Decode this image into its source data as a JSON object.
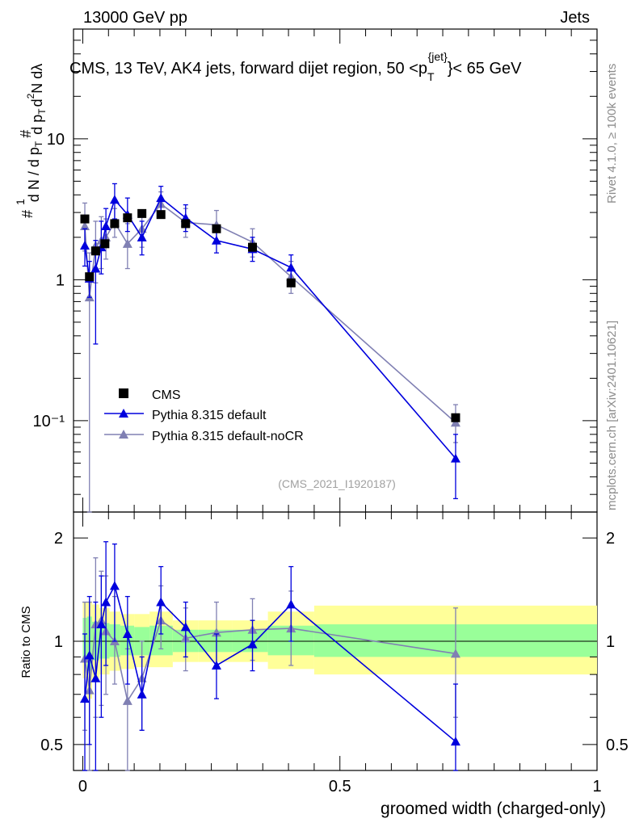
{
  "header": {
    "left": "13000 GeV pp",
    "right": "Jets"
  },
  "side_labels": {
    "rivet": "Rivet 4.1.0, ≥ 100k events",
    "mcplots": "mcplots.cern.ch [arXiv:2401.10621]"
  },
  "chart_data": [
    {
      "type": "scatter",
      "title": "CMS, 13 TeV, AK4 jets, forward dijet region, 50 <p",
      "title_sup": "{jet}",
      "title_sub": "T",
      "title_end": "}< 65 GeV",
      "ylabel": "1/N dN/dp_T d^2N/dp_T dλ",
      "yscale": "log",
      "ylim": [
        0.0225,
        60
      ],
      "xlim": [
        -0.018,
        1.0
      ],
      "watermark": "(CMS_2021_I1920187)",
      "y_tick_labels": [
        {
          "value": 10,
          "label": "10"
        },
        {
          "value": 1,
          "label": "1"
        },
        {
          "value": 0.1,
          "label": "10⁻¹"
        }
      ],
      "legend": [
        "CMS",
        "Pythia 8.315 default",
        "Pythia 8.315 default-noCR"
      ],
      "series": [
        {
          "name": "CMS",
          "marker": "square",
          "color": "#000000",
          "points": [
            {
              "x": 0.004,
              "y": 2.7
            },
            {
              "x": 0.013,
              "y": 1.05
            },
            {
              "x": 0.025,
              "y": 1.6
            },
            {
              "x": 0.043,
              "y": 1.8
            },
            {
              "x": 0.062,
              "y": 2.5
            },
            {
              "x": 0.087,
              "y": 2.75
            },
            {
              "x": 0.115,
              "y": 2.95
            },
            {
              "x": 0.152,
              "y": 2.9
            },
            {
              "x": 0.2,
              "y": 2.5
            },
            {
              "x": 0.26,
              "y": 2.3
            },
            {
              "x": 0.33,
              "y": 1.7
            },
            {
              "x": 0.405,
              "y": 0.95
            },
            {
              "x": 0.725,
              "y": 0.105
            }
          ]
        },
        {
          "name": "Pythia 8.315 default",
          "marker": "triangle",
          "color": "#0000dd",
          "points": [
            {
              "x": 0.004,
              "y": 1.75,
              "lo": 1.25,
              "hi": 2.3
            },
            {
              "x": 0.013,
              "y": 1.02,
              "lo": 0.75,
              "hi": 1.35
            },
            {
              "x": 0.025,
              "y": 1.2,
              "lo": 0.35,
              "hi": 1.9
            },
            {
              "x": 0.036,
              "y": 1.7,
              "lo": 1.1,
              "hi": 2.6
            },
            {
              "x": 0.045,
              "y": 2.4,
              "lo": 1.7,
              "hi": 3.2
            },
            {
              "x": 0.062,
              "y": 3.7,
              "lo": 2.7,
              "hi": 4.8
            },
            {
              "x": 0.087,
              "y": 2.9,
              "lo": 2.2,
              "hi": 3.8
            },
            {
              "x": 0.115,
              "y": 2.0,
              "lo": 1.5,
              "hi": 2.6
            },
            {
              "x": 0.152,
              "y": 3.8,
              "lo": 3.0,
              "hi": 4.6
            },
            {
              "x": 0.2,
              "y": 2.75,
              "lo": 2.2,
              "hi": 3.4
            },
            {
              "x": 0.26,
              "y": 1.9,
              "lo": 1.55,
              "hi": 2.3
            },
            {
              "x": 0.33,
              "y": 1.65,
              "lo": 1.35,
              "hi": 2.0
            },
            {
              "x": 0.405,
              "y": 1.22,
              "lo": 1.0,
              "hi": 1.5
            },
            {
              "x": 0.725,
              "y": 0.054,
              "lo": 0.028,
              "hi": 0.08
            }
          ]
        },
        {
          "name": "Pythia 8.315 default-noCR",
          "marker": "triangle",
          "color": "#8080b3",
          "points": [
            {
              "x": 0.004,
              "y": 2.4,
              "lo": 1.6,
              "hi": 3.5
            },
            {
              "x": 0.013,
              "y": 0.75,
              "lo": 0.0225,
              "hi": 1.55
            },
            {
              "x": 0.025,
              "y": 1.75,
              "lo": 0.95,
              "hi": 2.6
            },
            {
              "x": 0.036,
              "y": 1.9,
              "lo": 1.2,
              "hi": 2.8
            },
            {
              "x": 0.045,
              "y": 2.0,
              "lo": 1.4,
              "hi": 2.7
            },
            {
              "x": 0.062,
              "y": 2.55,
              "lo": 2.0,
              "hi": 3.2
            },
            {
              "x": 0.087,
              "y": 1.8,
              "lo": 1.2,
              "hi": 2.5
            },
            {
              "x": 0.115,
              "y": 2.3,
              "lo": 1.7,
              "hi": 3.0
            },
            {
              "x": 0.152,
              "y": 3.45,
              "lo": 2.8,
              "hi": 4.2
            },
            {
              "x": 0.2,
              "y": 2.55,
              "lo": 2.0,
              "hi": 3.2
            },
            {
              "x": 0.26,
              "y": 2.45,
              "lo": 1.9,
              "hi": 3.1
            },
            {
              "x": 0.33,
              "y": 1.85,
              "lo": 1.45,
              "hi": 2.3
            },
            {
              "x": 0.405,
              "y": 1.05,
              "lo": 0.8,
              "hi": 1.35
            },
            {
              "x": 0.725,
              "y": 0.097,
              "lo": 0.07,
              "hi": 0.13
            }
          ]
        }
      ]
    },
    {
      "type": "scatter",
      "ylabel": "Ratio to CMS",
      "xlabel": "groomed width (charged-only)",
      "xlim": [
        -0.018,
        1.0
      ],
      "ylim": [
        0.42,
        2.38
      ],
      "yscale": "log",
      "reference_line": 1,
      "y_tick_labels": [
        {
          "value": 2,
          "label": "2"
        },
        {
          "value": 1,
          "label": "1"
        },
        {
          "value": 0.5,
          "label": "0.5"
        }
      ],
      "x_tick_labels": [
        {
          "value": 0,
          "label": "0"
        },
        {
          "value": 0.5,
          "label": "0.5"
        },
        {
          "value": 1,
          "label": "1"
        }
      ],
      "uncertainty_bands": [
        {
          "x0": 0.0,
          "x1": 0.008,
          "y_lo": 0.78,
          "y_hi": 1.3,
          "g_lo": 0.88,
          "g_hi": 1.17
        },
        {
          "x0": 0.008,
          "x1": 0.018,
          "y_lo": 0.68,
          "y_hi": 1.3,
          "g_lo": 0.82,
          "g_hi": 1.18
        },
        {
          "x0": 0.018,
          "x1": 0.032,
          "y_lo": 0.78,
          "y_hi": 1.28,
          "g_lo": 0.88,
          "g_hi": 1.14
        },
        {
          "x0": 0.032,
          "x1": 0.052,
          "y_lo": 0.8,
          "y_hi": 1.25,
          "g_lo": 0.89,
          "g_hi": 1.13
        },
        {
          "x0": 0.052,
          "x1": 0.073,
          "y_lo": 0.82,
          "y_hi": 1.22,
          "g_lo": 0.9,
          "g_hi": 1.12
        },
        {
          "x0": 0.073,
          "x1": 0.1,
          "y_lo": 0.83,
          "y_hi": 1.2,
          "g_lo": 0.91,
          "g_hi": 1.11
        },
        {
          "x0": 0.1,
          "x1": 0.13,
          "y_lo": 0.84,
          "y_hi": 1.2,
          "g_lo": 0.91,
          "g_hi": 1.1
        },
        {
          "x0": 0.13,
          "x1": 0.175,
          "y_lo": 0.84,
          "y_hi": 1.22,
          "g_lo": 0.91,
          "g_hi": 1.11
        },
        {
          "x0": 0.175,
          "x1": 0.225,
          "y_lo": 0.87,
          "y_hi": 1.15,
          "g_lo": 0.93,
          "g_hi": 1.08
        },
        {
          "x0": 0.225,
          "x1": 0.29,
          "y_lo": 0.87,
          "y_hi": 1.15,
          "g_lo": 0.93,
          "g_hi": 1.08
        },
        {
          "x0": 0.29,
          "x1": 0.36,
          "y_lo": 0.87,
          "y_hi": 1.15,
          "g_lo": 0.93,
          "g_hi": 1.08
        },
        {
          "x0": 0.36,
          "x1": 0.45,
          "y_lo": 0.83,
          "y_hi": 1.22,
          "g_lo": 0.91,
          "g_hi": 1.11
        },
        {
          "x0": 0.45,
          "x1": 1.0,
          "y_lo": 0.8,
          "y_hi": 1.27,
          "g_lo": 0.9,
          "g_hi": 1.12
        }
      ],
      "series": [
        {
          "name": "Pythia 8.315 default",
          "color": "#0000dd",
          "points": [
            {
              "x": 0.004,
              "y": 0.68,
              "lo": 0.42,
              "hi": 1.05
            },
            {
              "x": 0.013,
              "y": 0.91,
              "lo": 0.5,
              "hi": 1.35
            },
            {
              "x": 0.025,
              "y": 0.78,
              "lo": 0.42,
              "hi": 1.3
            },
            {
              "x": 0.036,
              "y": 1.12,
              "lo": 0.6,
              "hi": 1.55
            },
            {
              "x": 0.045,
              "y": 1.3,
              "lo": 0.85,
              "hi": 1.95
            },
            {
              "x": 0.062,
              "y": 1.45,
              "lo": 1.0,
              "hi": 1.92
            },
            {
              "x": 0.087,
              "y": 1.05,
              "lo": 0.75,
              "hi": 1.35
            },
            {
              "x": 0.115,
              "y": 0.7,
              "lo": 0.55,
              "hi": 0.9
            },
            {
              "x": 0.152,
              "y": 1.3,
              "lo": 1.05,
              "hi": 1.65
            },
            {
              "x": 0.2,
              "y": 1.1,
              "lo": 0.9,
              "hi": 1.3
            },
            {
              "x": 0.26,
              "y": 0.85,
              "lo": 0.68,
              "hi": 1.05
            },
            {
              "x": 0.33,
              "y": 0.98,
              "lo": 0.82,
              "hi": 1.15
            },
            {
              "x": 0.405,
              "y": 1.28,
              "lo": 1.0,
              "hi": 1.65
            },
            {
              "x": 0.725,
              "y": 0.51,
              "lo": 0.42,
              "hi": 0.75
            }
          ]
        },
        {
          "name": "Pythia 8.315 default-noCR",
          "color": "#8080b3",
          "points": [
            {
              "x": 0.004,
              "y": 0.89,
              "lo": 0.55,
              "hi": 1.3
            },
            {
              "x": 0.013,
              "y": 0.72,
              "lo": 0.42,
              "hi": 1.3
            },
            {
              "x": 0.025,
              "y": 1.12,
              "lo": 0.6,
              "hi": 1.75
            },
            {
              "x": 0.036,
              "y": 1.15,
              "lo": 0.65,
              "hi": 1.6
            },
            {
              "x": 0.045,
              "y": 1.07,
              "lo": 0.7,
              "hi": 1.55
            },
            {
              "x": 0.062,
              "y": 1.0,
              "lo": 0.75,
              "hi": 1.35
            },
            {
              "x": 0.087,
              "y": 0.67,
              "lo": 0.42,
              "hi": 0.95
            },
            {
              "x": 0.115,
              "y": 0.78,
              "lo": 0.55,
              "hi": 1.0
            },
            {
              "x": 0.152,
              "y": 1.15,
              "lo": 0.95,
              "hi": 1.45
            },
            {
              "x": 0.2,
              "y": 1.02,
              "lo": 0.82,
              "hi": 1.25
            },
            {
              "x": 0.26,
              "y": 1.06,
              "lo": 0.85,
              "hi": 1.3
            },
            {
              "x": 0.33,
              "y": 1.08,
              "lo": 0.88,
              "hi": 1.33
            },
            {
              "x": 0.405,
              "y": 1.09,
              "lo": 0.85,
              "hi": 1.4
            },
            {
              "x": 0.725,
              "y": 0.92,
              "lo": 0.6,
              "hi": 1.25
            }
          ]
        }
      ]
    }
  ]
}
